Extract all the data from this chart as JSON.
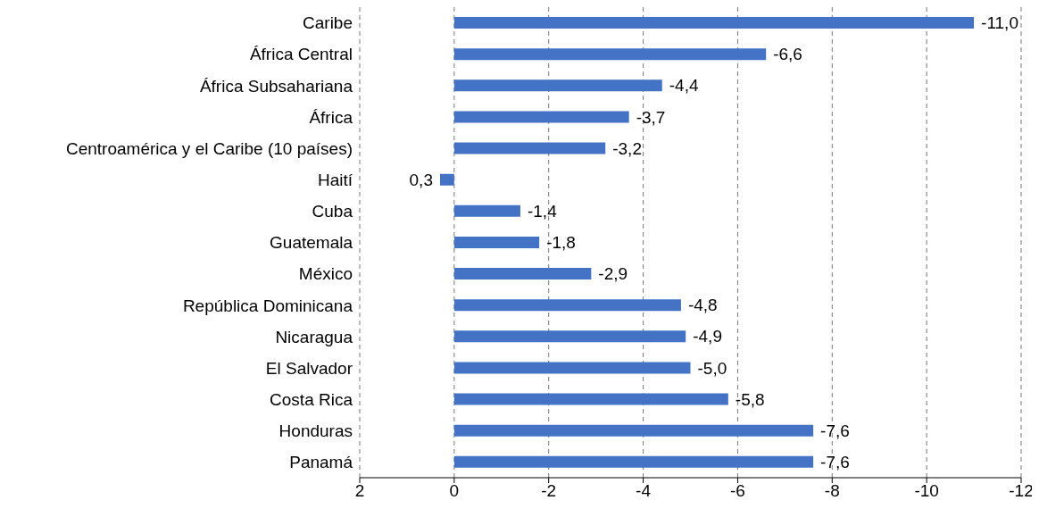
{
  "chart_data": {
    "type": "bar",
    "orientation": "horizontal",
    "categories": [
      "Caribe",
      "África Central",
      "África Subsahariana",
      "África",
      "Centroamérica y el Caribe (10 países)",
      "Haití",
      "Cuba",
      "Guatemala",
      "México",
      "República Dominicana",
      "Nicaragua",
      "El Salvador",
      "Costa Rica",
      "Honduras",
      "Panamá"
    ],
    "values": [
      -11.0,
      -6.6,
      -4.4,
      -3.7,
      -3.2,
      0.3,
      -1.4,
      -1.8,
      -2.9,
      -4.8,
      -4.9,
      -5.0,
      -5.8,
      -7.6,
      -7.6
    ],
    "value_labels": [
      "-11,0",
      "-6,6",
      "-4,4",
      "-3,7",
      "-3,2",
      "0,3",
      "-1,4",
      "-1,8",
      "-2,9",
      "-4,8",
      "-4,9",
      "-5,0",
      "-5,8",
      "-7,6",
      "-7,6"
    ],
    "color": "#4472c4",
    "xlim": [
      2,
      -12
    ],
    "xticks": [
      2,
      0,
      -2,
      -4,
      -6,
      -8,
      -10,
      -12
    ],
    "grid": "x"
  }
}
